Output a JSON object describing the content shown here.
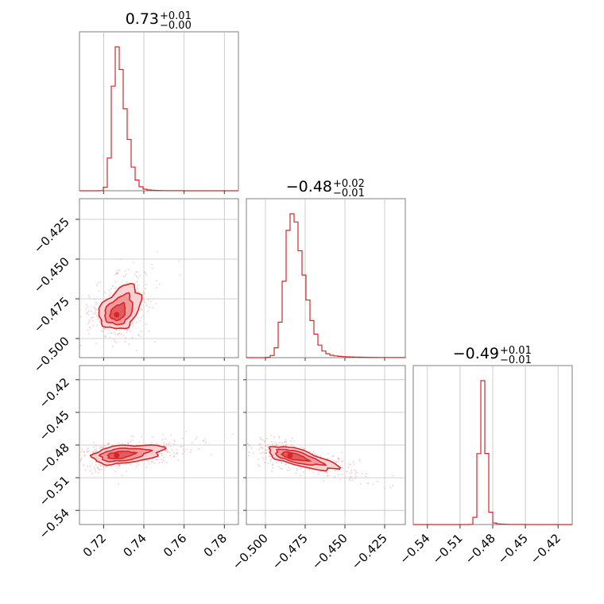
{
  "colors": {
    "accent": "#d62728",
    "grid": "#c0c0c0",
    "frame": "#7f7f7f",
    "fill_1": "#e15459",
    "fill_2": "#ee9397",
    "fill_3": "#f7cdd0"
  },
  "chart_data": {
    "type": "corner",
    "grid": true,
    "params": [
      {
        "id": "p1",
        "title_value": "0.73",
        "title_plus": "+0.01",
        "title_minus": "−0.00"
      },
      {
        "id": "p2",
        "title_value": "−0.48",
        "title_plus": "+0.02",
        "title_minus": "−0.01"
      },
      {
        "id": "p3",
        "title_value": "−0.49",
        "title_plus": "+0.01",
        "title_minus": "−0.01"
      }
    ],
    "x_ticks": [
      {
        "range": [
          0.708,
          0.787
        ],
        "values": [
          0.72,
          0.74,
          0.76,
          0.78
        ],
        "labels": [
          "0.72",
          "0.74",
          "0.76",
          "0.78"
        ]
      },
      {
        "range": [
          -0.512,
          -0.412
        ],
        "values": [
          -0.5,
          -0.475,
          -0.45,
          -0.425
        ],
        "labels": [
          "−0.500",
          "−0.475",
          "−0.450",
          "−0.425"
        ]
      },
      {
        "range": [
          -0.553,
          -0.407
        ],
        "values": [
          -0.54,
          -0.51,
          -0.48,
          -0.45,
          -0.42
        ],
        "labels": [
          "−0.54",
          "−0.51",
          "−0.48",
          "−0.45",
          "−0.42"
        ]
      }
    ],
    "y_ticks": [
      null,
      {
        "range": [
          -0.512,
          -0.412
        ],
        "values": [
          -0.5,
          -0.475,
          -0.45,
          -0.425
        ],
        "labels": [
          "−0.500",
          "−0.475",
          "−0.450",
          "−0.425"
        ]
      },
      {
        "range": [
          -0.553,
          -0.407
        ],
        "values": [
          -0.54,
          -0.51,
          -0.48,
          -0.45,
          -0.42
        ],
        "labels": [
          "−0.54",
          "−0.51",
          "−0.48",
          "−0.45",
          "−0.42"
        ]
      }
    ],
    "histograms": [
      {
        "param": "p1",
        "peak": 0.7262,
        "sigma_left": 0.002,
        "sigma_right": 0.0045,
        "tail_scale": 0.006,
        "tail_weight": 0.07
      },
      {
        "param": "p2",
        "peak": -0.4842,
        "sigma_left": 0.004,
        "sigma_right": 0.008,
        "tail_scale": 0.013,
        "tail_weight": 0.1
      },
      {
        "param": "p3",
        "peak": -0.4896,
        "sigma_left": 0.0028,
        "sigma_right": 0.0034,
        "tail_scale": 0.008,
        "tail_weight": 0.03
      }
    ],
    "joint": [
      {
        "x": "p1",
        "y": "p2",
        "center": [
          0.7265,
          -0.485
        ],
        "slope": 2.2,
        "spread_major": [
          0.0045,
          0.01
        ],
        "spread_minor": 0.0045
      },
      {
        "x": "p1",
        "y": "p3",
        "center": [
          0.7265,
          -0.4895
        ],
        "slope": 0.25,
        "spread_major": [
          0.006,
          0.012
        ],
        "spread_minor": 0.004
      },
      {
        "x": "p2",
        "y": "p3",
        "center": [
          -0.4845,
          -0.4895
        ],
        "slope": -0.4,
        "spread_major": [
          0.007,
          0.016
        ],
        "spread_minor": 0.0035
      }
    ]
  }
}
